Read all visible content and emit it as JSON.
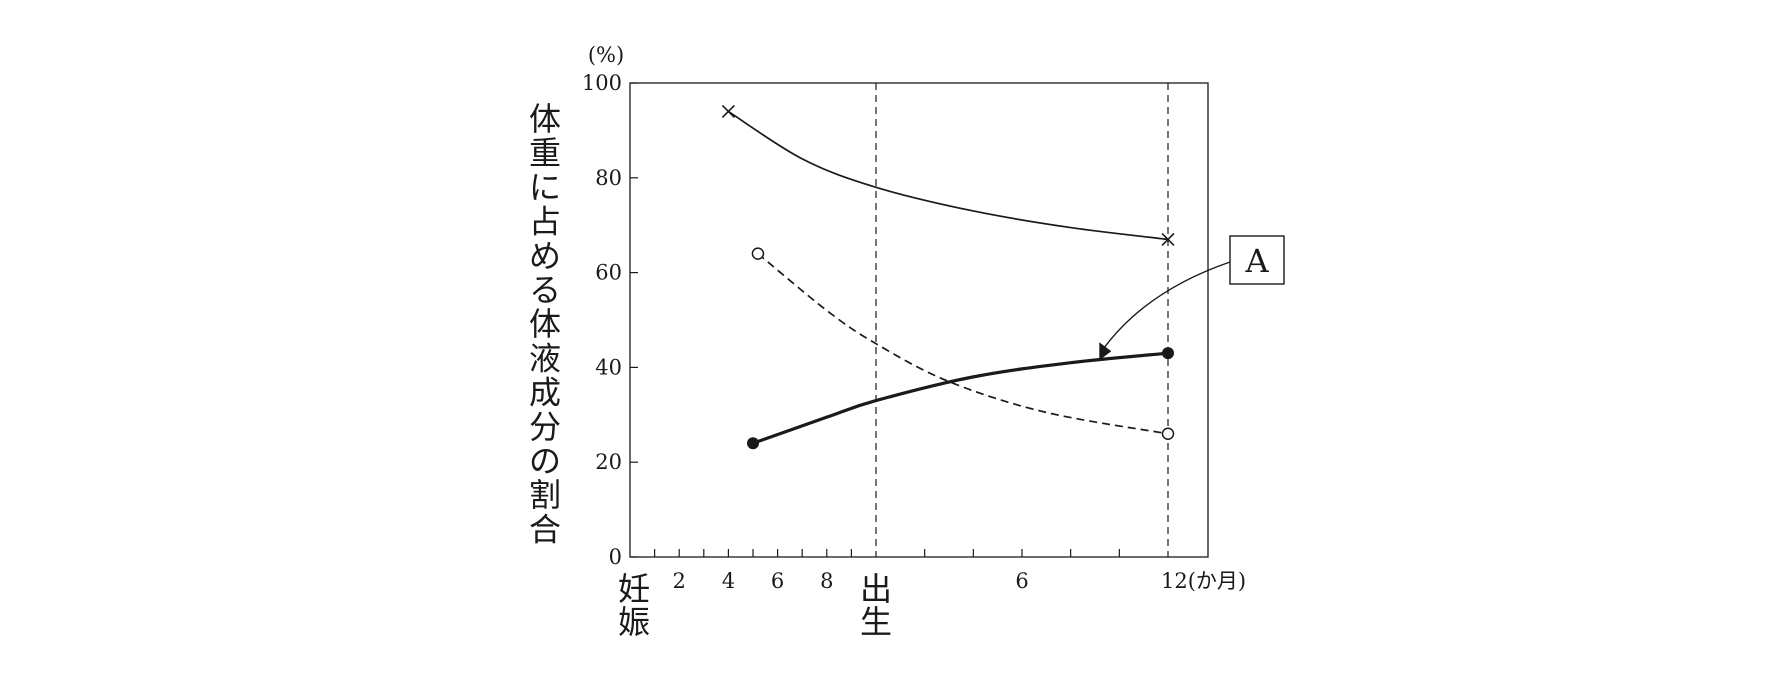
{
  "chart_data": {
    "type": "line",
    "ylabel": "体重に占める体液成分の割合",
    "yunit": "(%)",
    "ylim": [
      0,
      100
    ],
    "yticks": [
      0,
      20,
      40,
      60,
      80,
      100
    ],
    "x_axis": {
      "segments": [
        {
          "name": "妊娠",
          "unit": "月",
          "range": [
            0,
            10
          ],
          "ticks": [
            2,
            4,
            6,
            8
          ]
        },
        {
          "name": "出生後",
          "unit": "か月",
          "range": [
            0,
            12
          ],
          "ticks": [
            6,
            12
          ]
        }
      ],
      "start_label": "妊娠",
      "birth_label": "出生",
      "last_tick_label": "12(か月)",
      "vlines": [
        "birth",
        "postnatal_12"
      ]
    },
    "series": [
      {
        "marker": "x",
        "style": "solid-thin",
        "points": [
          {
            "segment": "pregnancy",
            "x": 4,
            "y": 94
          },
          {
            "segment": "pregnancy",
            "x": 7,
            "y": 84
          },
          {
            "segment": "postnatal",
            "x": 0,
            "y": 78
          },
          {
            "segment": "postnatal",
            "x": 4,
            "y": 73
          },
          {
            "segment": "postnatal",
            "x": 8,
            "y": 69.5
          },
          {
            "segment": "postnatal",
            "x": 12,
            "y": 67
          }
        ]
      },
      {
        "marker": "open-circle",
        "style": "dashed",
        "points": [
          {
            "segment": "pregnancy",
            "x": 5.2,
            "y": 64
          },
          {
            "segment": "pregnancy",
            "x": 8,
            "y": 52
          },
          {
            "segment": "postnatal",
            "x": 0,
            "y": 45
          },
          {
            "segment": "postnatal",
            "x": 3,
            "y": 37
          },
          {
            "segment": "postnatal",
            "x": 7,
            "y": 30.5
          },
          {
            "segment": "postnatal",
            "x": 12,
            "y": 26
          }
        ]
      },
      {
        "marker": "filled-circle",
        "style": "solid-bold",
        "points": [
          {
            "segment": "pregnancy",
            "x": 5,
            "y": 24
          },
          {
            "segment": "pregnancy",
            "x": 8,
            "y": 29.5
          },
          {
            "segment": "postnatal",
            "x": 0,
            "y": 33
          },
          {
            "segment": "postnatal",
            "x": 4,
            "y": 38
          },
          {
            "segment": "postnatal",
            "x": 8,
            "y": 41
          },
          {
            "segment": "postnatal",
            "x": 12,
            "y": 43
          }
        ]
      }
    ],
    "annotation": {
      "text": "A",
      "target_series_index": 2,
      "target": {
        "segment": "postnatal",
        "x": 9.3,
        "y": 41.5
      }
    }
  }
}
